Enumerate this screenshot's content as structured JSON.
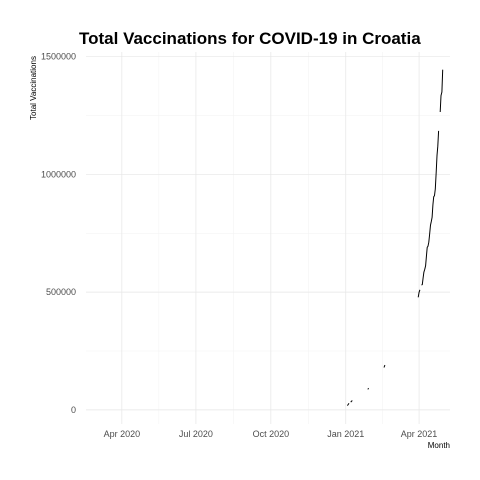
{
  "chart_data": {
    "type": "line",
    "title": "Total Vaccinations for COVID-19 in Croatia",
    "xlabel": "Month",
    "ylabel": "Total Vaccinations",
    "x_range": [
      "2020-02-17",
      "2021-05-09"
    ],
    "ylim": [
      -60000,
      1520000
    ],
    "x_ticks": [
      {
        "date": "2020-04-01",
        "label": "Apr 2020"
      },
      {
        "date": "2020-07-01",
        "label": "Jul 2020"
      },
      {
        "date": "2020-10-01",
        "label": "Oct 2020"
      },
      {
        "date": "2021-01-01",
        "label": "Jan 2021"
      },
      {
        "date": "2021-04-01",
        "label": "Apr 2021"
      }
    ],
    "y_ticks": [
      {
        "value": 0,
        "label": "0"
      },
      {
        "value": 500000,
        "label": "500000"
      },
      {
        "value": 1000000,
        "label": "1000000"
      },
      {
        "value": 1500000,
        "label": "1500000"
      }
    ],
    "grid": true,
    "series": [
      {
        "segments": [
          [
            {
              "x": "2021-01-03",
              "y": 18000
            },
            {
              "x": "2021-01-05",
              "y": 28000
            }
          ],
          [
            {
              "x": "2021-01-07",
              "y": 33000
            },
            {
              "x": "2021-01-09",
              "y": 40000
            }
          ],
          [
            {
              "x": "2021-01-28",
              "y": 87000
            },
            {
              "x": "2021-01-29",
              "y": 92000
            }
          ],
          [
            {
              "x": "2021-02-17",
              "y": 180000
            },
            {
              "x": "2021-02-18",
              "y": 190000
            }
          ],
          [
            {
              "x": "2021-03-31",
              "y": 478000
            },
            {
              "x": "2021-04-01",
              "y": 500000
            },
            {
              "x": "2021-04-02",
              "y": 510000
            }
          ],
          [
            {
              "x": "2021-04-04",
              "y": 530000
            },
            {
              "x": "2021-04-05",
              "y": 532000
            },
            {
              "x": "2021-04-06",
              "y": 560000
            },
            {
              "x": "2021-04-07",
              "y": 585000
            },
            {
              "x": "2021-04-08",
              "y": 598000
            },
            {
              "x": "2021-04-09",
              "y": 612000
            },
            {
              "x": "2021-04-10",
              "y": 652000
            },
            {
              "x": "2021-04-11",
              "y": 690000
            },
            {
              "x": "2021-04-12",
              "y": 695000
            },
            {
              "x": "2021-04-13",
              "y": 712000
            },
            {
              "x": "2021-04-14",
              "y": 745000
            },
            {
              "x": "2021-04-15",
              "y": 785000
            },
            {
              "x": "2021-04-16",
              "y": 800000
            },
            {
              "x": "2021-04-17",
              "y": 818000
            },
            {
              "x": "2021-04-18",
              "y": 870000
            },
            {
              "x": "2021-04-19",
              "y": 905000
            },
            {
              "x": "2021-04-20",
              "y": 910000
            },
            {
              "x": "2021-04-21",
              "y": 938000
            },
            {
              "x": "2021-04-22",
              "y": 1010000
            },
            {
              "x": "2021-04-23",
              "y": 1080000
            },
            {
              "x": "2021-04-24",
              "y": 1120000
            },
            {
              "x": "2021-04-25",
              "y": 1185000
            }
          ],
          [
            {
              "x": "2021-04-27",
              "y": 1265000
            },
            {
              "x": "2021-04-28",
              "y": 1335000
            },
            {
              "x": "2021-04-29",
              "y": 1350000
            },
            {
              "x": "2021-04-30",
              "y": 1445000
            }
          ]
        ]
      }
    ]
  }
}
